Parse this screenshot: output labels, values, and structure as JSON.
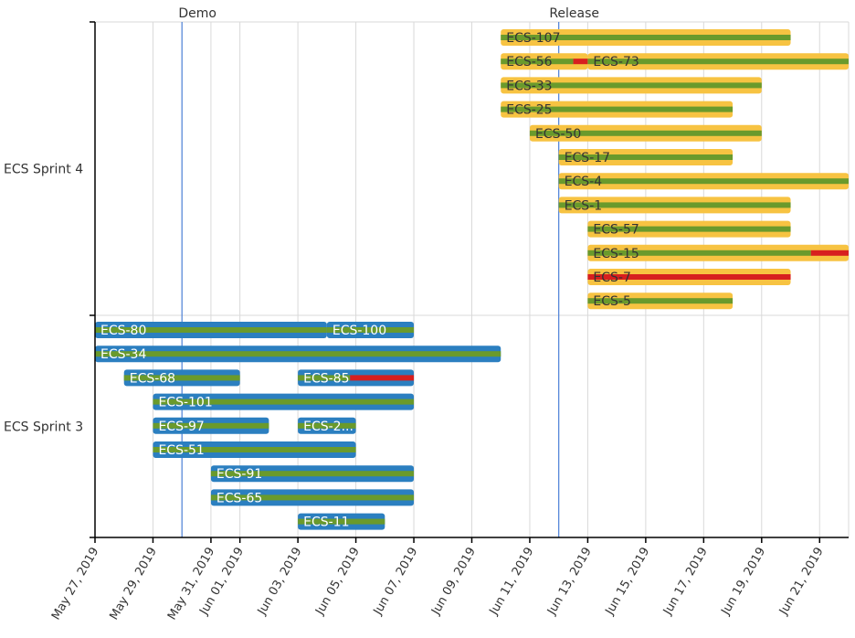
{
  "chart_data": {
    "type": "gantt",
    "title": "",
    "x_type": "date",
    "xlim": [
      "2019-05-27",
      "2019-06-22"
    ],
    "x_ticks": [
      "2019-05-27",
      "2019-05-29",
      "2019-05-31",
      "2019-06-01",
      "2019-06-03",
      "2019-06-05",
      "2019-06-07",
      "2019-06-09",
      "2019-06-11",
      "2019-06-13",
      "2019-06-15",
      "2019-06-17",
      "2019-06-19",
      "2019-06-21"
    ],
    "x_tick_labels": [
      "May 27, 2019",
      "May 29, 2019",
      "May 31, 2019",
      "Jun 01, 2019",
      "Jun 03, 2019",
      "Jun 05, 2019",
      "Jun 07, 2019",
      "Jun 09, 2019",
      "Jun 11, 2019",
      "Jun 13, 2019",
      "Jun 15, 2019",
      "Jun 17, 2019",
      "Jun 19, 2019",
      "Jun 21, 2019"
    ],
    "grid": true,
    "markers": [
      {
        "label": "Demo",
        "date": "2019-05-30"
      },
      {
        "label": "Release",
        "date": "2019-06-12"
      }
    ],
    "colors": {
      "sprint4_bar": "#f7c342",
      "sprint3_bar": "#2b7fc0",
      "progress_ok": "#6a9a2c",
      "progress_late": "#d71f1f",
      "sprint4_text": "#333333",
      "sprint3_text": "#ffffff"
    },
    "lanes": [
      {
        "name": "ECS Sprint 4",
        "rows": [
          [
            {
              "id": "ECS-107",
              "start": "2019-06-10",
              "end": "2019-06-20",
              "progress": [
                {
                  "until": "2019-06-20",
                  "status": "ok"
                }
              ]
            }
          ],
          [
            {
              "id": "ECS-56",
              "start": "2019-06-10",
              "end": "2019-06-13",
              "progress": [
                {
                  "until": "2019-06-12.5",
                  "status": "ok"
                },
                {
                  "until": "2019-06-13",
                  "status": "late"
                }
              ]
            },
            {
              "id": "ECS-73",
              "start": "2019-06-13",
              "end": "2019-06-22",
              "progress": [
                {
                  "until": "2019-06-22",
                  "status": "ok"
                }
              ]
            }
          ],
          [
            {
              "id": "ECS-33",
              "start": "2019-06-10",
              "end": "2019-06-19",
              "progress": [
                {
                  "until": "2019-06-19",
                  "status": "ok"
                }
              ]
            }
          ],
          [
            {
              "id": "ECS-25",
              "start": "2019-06-10",
              "end": "2019-06-18",
              "progress": [
                {
                  "until": "2019-06-18",
                  "status": "ok"
                }
              ]
            }
          ],
          [
            {
              "id": "ECS-50",
              "start": "2019-06-11",
              "end": "2019-06-19",
              "progress": [
                {
                  "until": "2019-06-19",
                  "status": "ok"
                }
              ]
            }
          ],
          [
            {
              "id": "ECS-17",
              "start": "2019-06-12",
              "end": "2019-06-18",
              "progress": [
                {
                  "until": "2019-06-18",
                  "status": "ok"
                }
              ]
            }
          ],
          [
            {
              "id": "ECS-4",
              "start": "2019-06-12",
              "end": "2019-06-22",
              "progress": [
                {
                  "until": "2019-06-22",
                  "status": "ok"
                }
              ]
            }
          ],
          [
            {
              "id": "ECS-1",
              "start": "2019-06-12",
              "end": "2019-06-20",
              "progress": [
                {
                  "until": "2019-06-20",
                  "status": "ok"
                }
              ]
            }
          ],
          [
            {
              "id": "ECS-57",
              "start": "2019-06-13",
              "end": "2019-06-20",
              "progress": [
                {
                  "until": "2019-06-20",
                  "status": "ok"
                }
              ]
            }
          ],
          [
            {
              "id": "ECS-15",
              "start": "2019-06-13",
              "end": "2019-06-22",
              "progress": [
                {
                  "until": "2019-06-20.7",
                  "status": "ok"
                },
                {
                  "until": "2019-06-22",
                  "status": "late"
                }
              ]
            }
          ],
          [
            {
              "id": "ECS-7",
              "start": "2019-06-13",
              "end": "2019-06-20",
              "progress": [
                {
                  "until": "2019-06-20",
                  "status": "late"
                }
              ]
            }
          ],
          [
            {
              "id": "ECS-5",
              "start": "2019-06-13",
              "end": "2019-06-18",
              "progress": [
                {
                  "until": "2019-06-18",
                  "status": "ok"
                }
              ]
            }
          ]
        ]
      },
      {
        "name": "ECS Sprint 3",
        "rows": [
          [
            {
              "id": "ECS-80",
              "start": "2019-05-27",
              "end": "2019-06-04",
              "progress": [
                {
                  "until": "2019-06-04",
                  "status": "ok"
                }
              ]
            },
            {
              "id": "ECS-100",
              "start": "2019-06-04",
              "end": "2019-06-07",
              "progress": [
                {
                  "until": "2019-06-07",
                  "status": "ok"
                }
              ]
            }
          ],
          [
            {
              "id": "ECS-34",
              "start": "2019-05-27",
              "end": "2019-06-10",
              "progress": [
                {
                  "until": "2019-06-10",
                  "status": "ok"
                }
              ]
            }
          ],
          [
            {
              "id": "ECS-68",
              "start": "2019-05-28",
              "end": "2019-06-01",
              "progress": [
                {
                  "until": "2019-06-01",
                  "status": "ok"
                }
              ]
            },
            {
              "id": "ECS-85",
              "start": "2019-06-03",
              "end": "2019-06-07",
              "progress": [
                {
                  "until": "2019-06-04.8",
                  "status": "ok"
                },
                {
                  "until": "2019-06-07",
                  "status": "late"
                }
              ]
            }
          ],
          [
            {
              "id": "ECS-101",
              "start": "2019-05-29",
              "end": "2019-06-07",
              "progress": [
                {
                  "until": "2019-06-07",
                  "status": "ok"
                }
              ]
            }
          ],
          [
            {
              "id": "ECS-97",
              "start": "2019-05-29",
              "end": "2019-06-02",
              "progress": [
                {
                  "until": "2019-06-02",
                  "status": "ok"
                }
              ]
            },
            {
              "id": "ECS-2...",
              "start": "2019-06-03",
              "end": "2019-06-05",
              "progress": [
                {
                  "until": "2019-06-05",
                  "status": "ok"
                }
              ]
            }
          ],
          [
            {
              "id": "ECS-51",
              "start": "2019-05-29",
              "end": "2019-06-05",
              "progress": [
                {
                  "until": "2019-06-05",
                  "status": "ok"
                }
              ]
            }
          ],
          [
            {
              "id": "ECS-91",
              "start": "2019-05-31",
              "end": "2019-06-07",
              "progress": [
                {
                  "until": "2019-06-07",
                  "status": "ok"
                }
              ]
            }
          ],
          [
            {
              "id": "ECS-65",
              "start": "2019-05-31",
              "end": "2019-06-07",
              "progress": [
                {
                  "until": "2019-06-07",
                  "status": "ok"
                }
              ]
            }
          ],
          [
            {
              "id": "ECS-11",
              "start": "2019-06-03",
              "end": "2019-06-06",
              "progress": [
                {
                  "until": "2019-06-06",
                  "status": "ok"
                }
              ]
            }
          ]
        ]
      }
    ]
  }
}
